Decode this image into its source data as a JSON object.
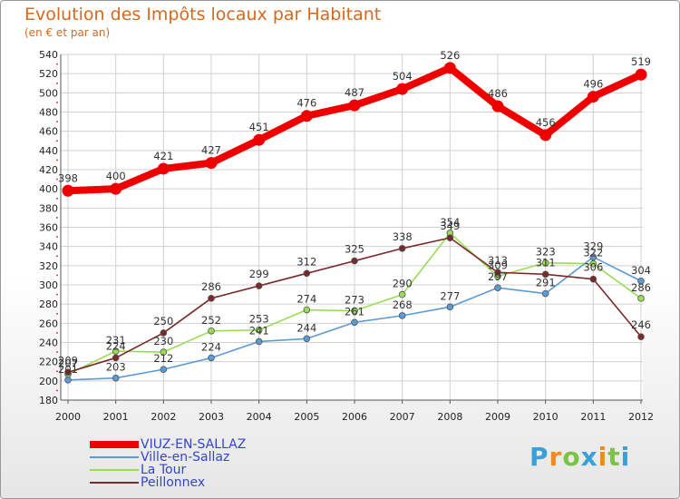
{
  "title": "Evolution des Impôts locaux par Habitant",
  "subtitle": "(en € et par an)",
  "brand": {
    "letters": [
      "P",
      "r",
      "o",
      "x",
      "i",
      "t",
      "i"
    ],
    "colors": [
      "#3aa0d8",
      "#f08a1c",
      "#7cc243",
      "#3aa0d8",
      "#f08a1c",
      "#7cc243",
      "#3aa0d8"
    ]
  },
  "chart_data": {
    "type": "line",
    "title": "Evolution des Impôts locaux par Habitant",
    "subtitle": "(en € et par an)",
    "xlabel": "",
    "ylabel": "",
    "x": [
      "2000",
      "2001",
      "2002",
      "2003",
      "2004",
      "2005",
      "2006",
      "2007",
      "2008",
      "2009",
      "2010",
      "2011",
      "2012"
    ],
    "ylim": [
      180,
      540
    ],
    "yticks": [
      "180",
      "200",
      "220",
      "240",
      "260",
      "280",
      "300",
      "320",
      "340",
      "360",
      "380",
      "400",
      "420",
      "440",
      "460",
      "480",
      "500",
      "520",
      "540"
    ],
    "grid": true,
    "legend_position": "bottom-left",
    "series": [
      {
        "name": "VIUZ-EN-SALLAZ",
        "color": "#ee0000",
        "emphasis": true,
        "values": [
          398,
          400,
          421,
          427,
          451,
          476,
          487,
          504,
          526,
          486,
          456,
          496,
          519
        ]
      },
      {
        "name": "Ville-en-Sallaz",
        "color": "#5b9bd5",
        "emphasis": false,
        "values": [
          201,
          203,
          212,
          224,
          241,
          244,
          261,
          268,
          277,
          297,
          291,
          329,
          304
        ]
      },
      {
        "name": "La Tour",
        "color": "#99dd55",
        "emphasis": false,
        "values": [
          207,
          231,
          230,
          252,
          253,
          274,
          273,
          290,
          354,
          309,
          323,
          322,
          286
        ]
      },
      {
        "name": "Peillonnex",
        "color": "#7a2a2a",
        "emphasis": false,
        "values": [
          209,
          224,
          250,
          286,
          299,
          312,
          325,
          338,
          349,
          313,
          311,
          306,
          246
        ]
      }
    ]
  }
}
